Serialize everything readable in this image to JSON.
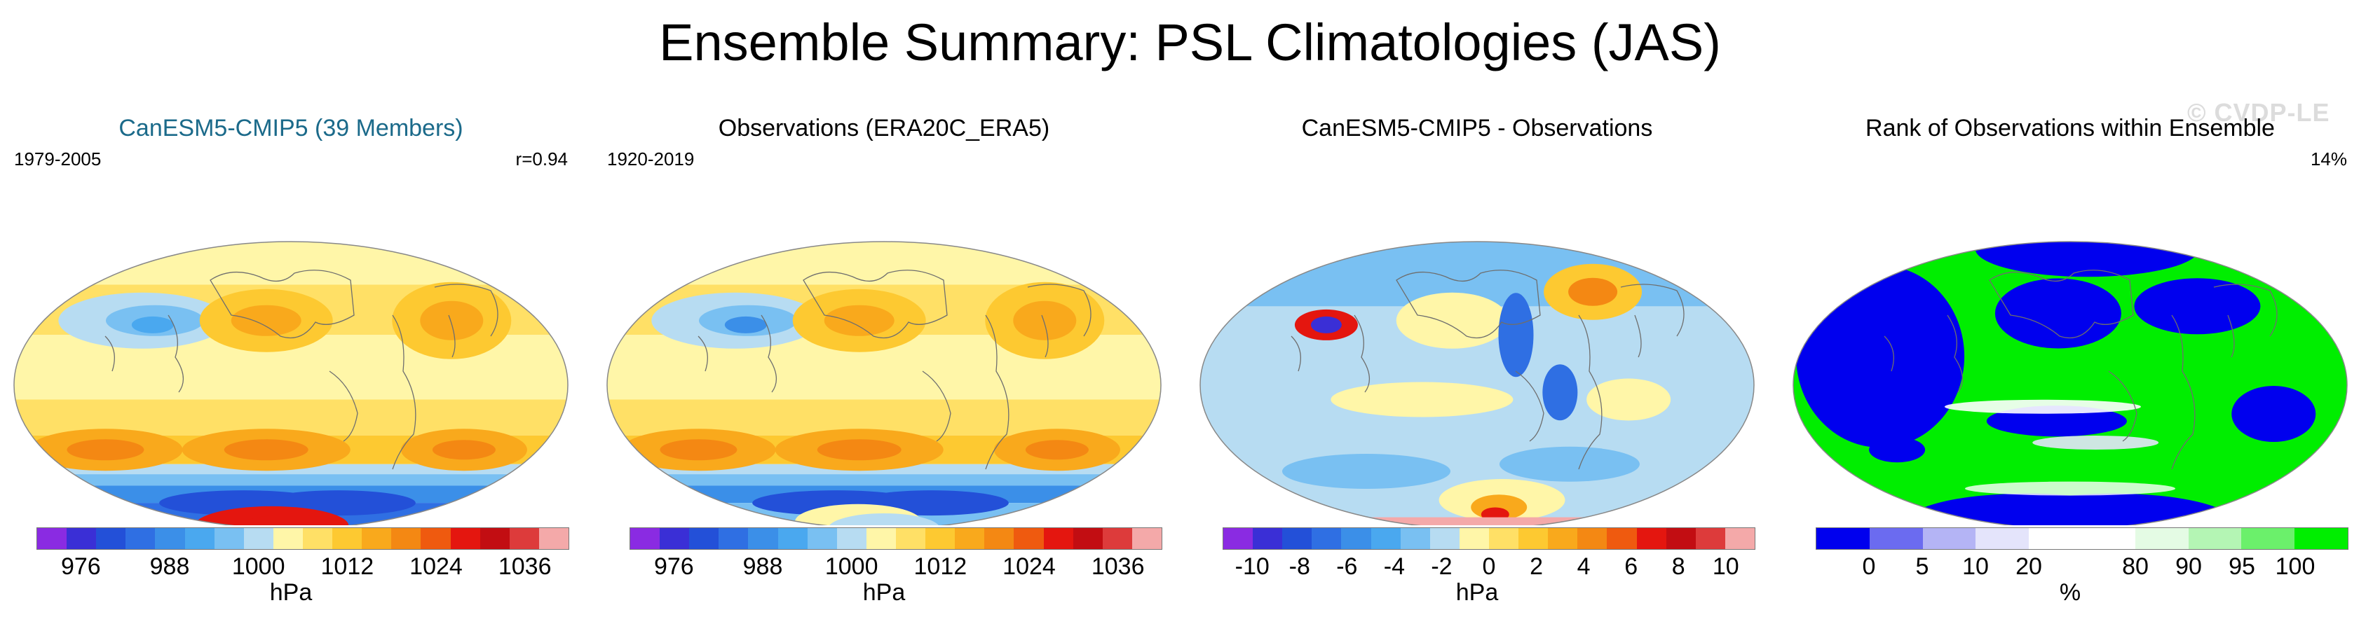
{
  "title": "Ensemble Summary: PSL Climatologies (JAS)",
  "watermark": "© CVDP-LE",
  "panels": [
    {
      "title": "CanESM5-CMIP5 (39 Members)",
      "period": "1979-2005",
      "stat": "r=0.94",
      "unit": "hPa",
      "ticks": [
        "976",
        "988",
        "1000",
        "1012",
        "1024",
        "1036"
      ],
      "colors": [
        "#8a2be2",
        "#3a2fd6",
        "#2350d8",
        "#2f6fe3",
        "#3b8fe8",
        "#4aa8ef",
        "#79c0f2",
        "#b7dcf2",
        "#fff6a8",
        "#ffe066",
        "#fdc931",
        "#f9a91c",
        "#f48813",
        "#ef5a0f",
        "#e4160f",
        "#c20d12",
        "#dd3b3b",
        "#f4a9a9"
      ]
    },
    {
      "title": "Observations (ERA20C_ERA5)",
      "period": "1920-2019",
      "stat": "",
      "unit": "hPa",
      "ticks": [
        "976",
        "988",
        "1000",
        "1012",
        "1024",
        "1036"
      ],
      "colors": [
        "#8a2be2",
        "#3a2fd6",
        "#2350d8",
        "#2f6fe3",
        "#3b8fe8",
        "#4aa8ef",
        "#79c0f2",
        "#b7dcf2",
        "#fff6a8",
        "#ffe066",
        "#fdc931",
        "#f9a91c",
        "#f48813",
        "#ef5a0f",
        "#e4160f",
        "#c20d12",
        "#dd3b3b",
        "#f4a9a9"
      ]
    },
    {
      "title": "CanESM5-CMIP5 - Observations",
      "period": "",
      "stat": "",
      "unit": "hPa",
      "ticks": [
        "-10",
        "-8",
        "-6",
        "-4",
        "-2",
        "0",
        "2",
        "4",
        "6",
        "8",
        "10"
      ],
      "colors": [
        "#8a2be2",
        "#3a2fd6",
        "#2350d8",
        "#2f6fe3",
        "#3b8fe8",
        "#4aa8ef",
        "#79c0f2",
        "#b7dcf2",
        "#fff6a8",
        "#ffe066",
        "#fdc931",
        "#f9a91c",
        "#f48813",
        "#ef5a0f",
        "#e4160f",
        "#c20d12",
        "#dd3b3b",
        "#f4a9a9"
      ]
    },
    {
      "title": "Rank of Observations within Ensemble",
      "period": "",
      "stat": "14%",
      "unit": "%",
      "ticks": [
        "0",
        "5",
        "10",
        "20",
        "80",
        "90",
        "95",
        "100"
      ],
      "colors": [
        "#0000ee",
        "#6b6bf0",
        "#b4b4f5",
        "#e4e4fb",
        "#ffffff",
        "#ffffff",
        "#e4fbe4",
        "#b4f5b4",
        "#6bf06b",
        "#00ee00"
      ]
    }
  ],
  "chart_data": [
    {
      "type": "heatmap",
      "title": "CanESM5-CMIP5 (39 Members)",
      "subtitle_left": "1979-2005",
      "subtitle_right": "r=0.94",
      "colorbar_label": "hPa",
      "colorbar_ticks": [
        976,
        988,
        1000,
        1012,
        1024,
        1036
      ],
      "colorbar_range": [
        968,
        1044
      ]
    },
    {
      "type": "heatmap",
      "title": "Observations (ERA20C_ERA5)",
      "subtitle_left": "1920-2019",
      "colorbar_label": "hPa",
      "colorbar_ticks": [
        976,
        988,
        1000,
        1012,
        1024,
        1036
      ],
      "colorbar_range": [
        968,
        1044
      ]
    },
    {
      "type": "heatmap",
      "title": "CanESM5-CMIP5 - Observations",
      "colorbar_label": "hPa",
      "colorbar_ticks": [
        -10,
        -8,
        -6,
        -4,
        -2,
        0,
        2,
        4,
        6,
        8,
        10
      ],
      "colorbar_range": [
        -12,
        12
      ]
    },
    {
      "type": "heatmap",
      "title": "Rank of Observations within Ensemble",
      "subtitle_right": "14%",
      "colorbar_label": "%",
      "colorbar_ticks": [
        0,
        5,
        10,
        20,
        80,
        90,
        95,
        100
      ]
    }
  ]
}
